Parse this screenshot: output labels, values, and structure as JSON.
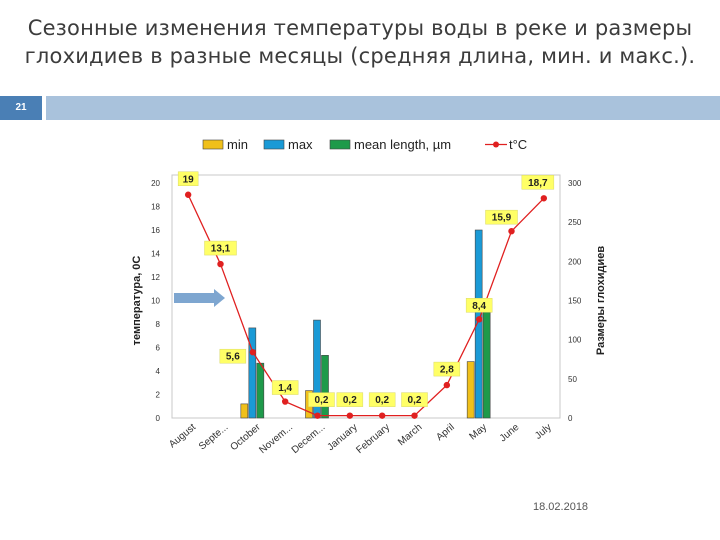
{
  "slide": {
    "title_line1": "Сезонные изменения температуры воды в реке и размеры",
    "title_line2": "глохидиев в разные месяцы (средняя длина, мин. и макс.).",
    "number": "21",
    "date": "18.02.2018"
  },
  "colors": {
    "min": "#f0c01b",
    "max": "#1a9ad6",
    "mean": "#1e9a4a",
    "temp": "#e02020",
    "accent_bar": "#a9c2dc",
    "number_box": "#4a7fb5",
    "arrow": "#7ea6d0"
  },
  "chart_data": {
    "type": "bar",
    "categories": [
      "August",
      "Septe...",
      "October",
      "Novem...",
      "Decem...",
      "January",
      "February",
      "March",
      "April",
      "May",
      "June",
      "July"
    ],
    "legend": [
      "min",
      "max",
      "mean length, µm",
      "t°C"
    ],
    "series": [
      {
        "name": "min",
        "axis": "right",
        "values": [
          null,
          null,
          18,
          null,
          35,
          null,
          null,
          null,
          null,
          72,
          null,
          null
        ]
      },
      {
        "name": "max",
        "axis": "right",
        "values": [
          null,
          null,
          115,
          null,
          125,
          null,
          null,
          null,
          null,
          240,
          null,
          null
        ]
      },
      {
        "name": "mean length, µm",
        "axis": "right",
        "values": [
          null,
          null,
          70,
          null,
          80,
          null,
          null,
          null,
          null,
          135,
          null,
          null
        ]
      },
      {
        "name": "t°C",
        "axis": "left",
        "type": "line",
        "values": [
          19,
          13.1,
          5.6,
          1.4,
          0.2,
          0.2,
          0.2,
          0.2,
          2.8,
          8.4,
          15.9,
          18.7
        ]
      }
    ],
    "data_labels": [
      "19",
      "13,1",
      "5,6",
      "1,4",
      "0,2",
      "0,2",
      "0,2",
      "0,2",
      "2,8",
      "8,4",
      "15,9",
      "18,7"
    ],
    "ylabel_left": "температура, 0С",
    "ylabel_right": "Размеры глохидиев",
    "ylim_left": [
      0,
      20
    ],
    "ylim_right": [
      0,
      300
    ],
    "yticks_left": [
      "0",
      "2",
      "4",
      "6",
      "8",
      "10",
      "12",
      "14",
      "16",
      "18",
      "20"
    ],
    "yticks_right": [
      "0",
      "50",
      "100",
      "150",
      "200",
      "250",
      "300"
    ],
    "legend_position": "top",
    "grid": false
  }
}
